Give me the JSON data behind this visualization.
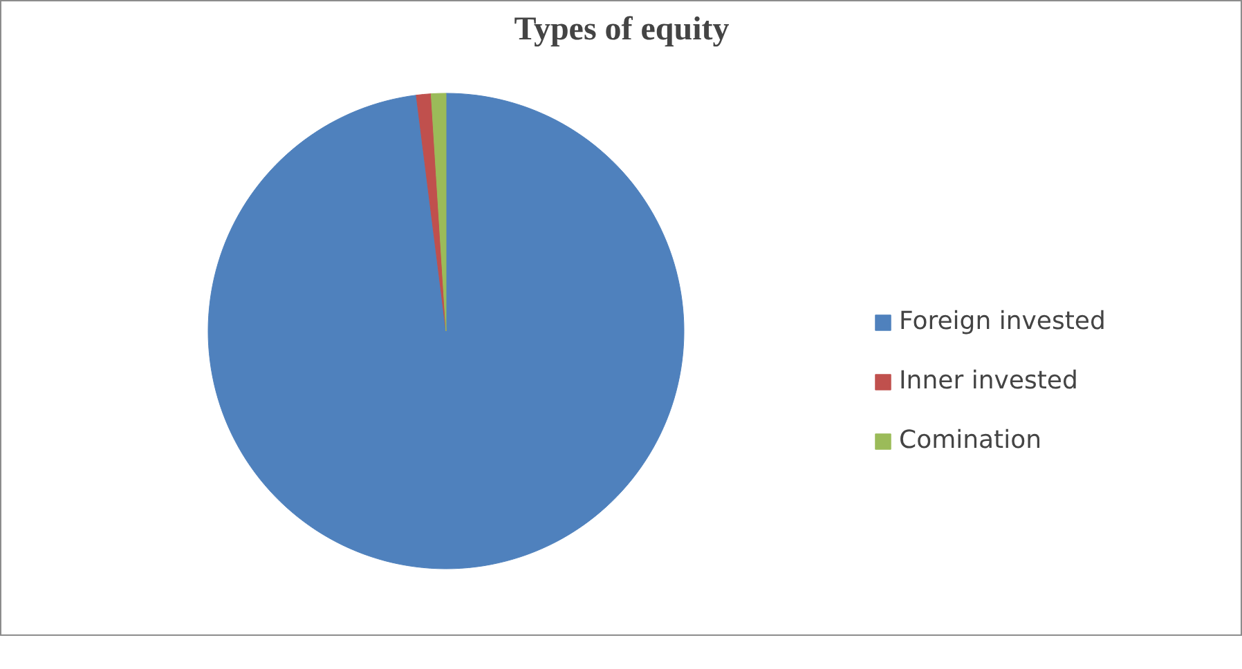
{
  "chart_data": {
    "type": "pie",
    "title": "Types of equity",
    "categories": [
      "Foreign invested",
      "Inner invested",
      "Comination"
    ],
    "values": [
      98,
      1,
      1
    ],
    "colors": [
      "#4f81bd",
      "#c0504d",
      "#9bbb59"
    ],
    "legend": "right"
  }
}
